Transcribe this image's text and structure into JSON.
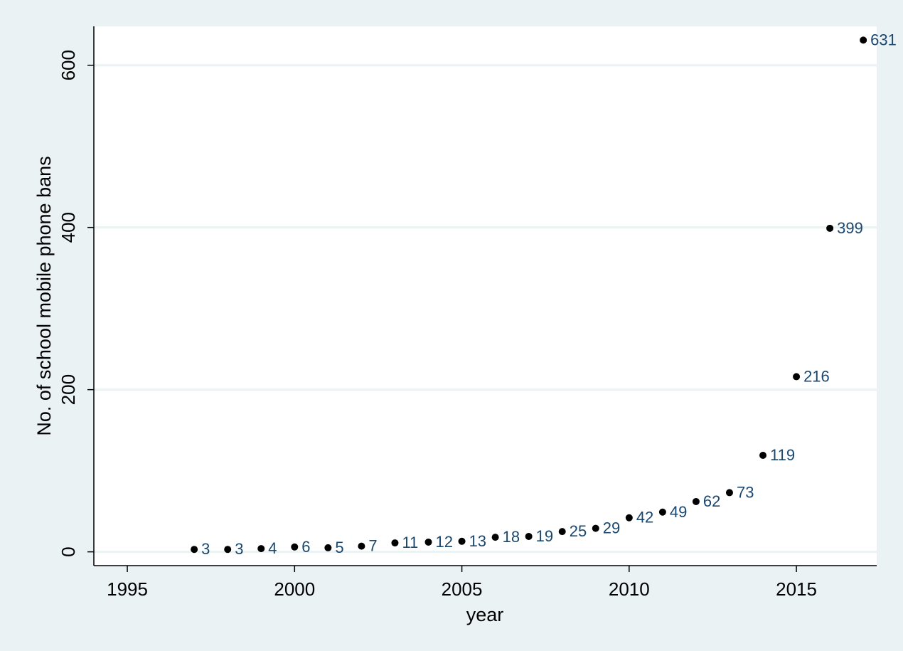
{
  "chart_data": {
    "type": "scatter",
    "title": "",
    "xlabel": "year",
    "ylabel": "No. of school mobile phone bans",
    "xlim": [
      1994,
      2017.4
    ],
    "ylim": [
      -17,
      648
    ],
    "x_ticks": [
      1995,
      2000,
      2005,
      2010,
      2015
    ],
    "y_ticks": [
      0,
      200,
      400,
      600
    ],
    "grid": "horizontal",
    "legend": "none",
    "marker_labels": true,
    "colors": {
      "background": "#eaf2f3",
      "plot_background": "#ffffff",
      "gridline": "#eaf2f3",
      "marker": "#000000",
      "label": "#1a476f"
    },
    "series": [
      {
        "x": [
          1997,
          1998,
          1999,
          2000,
          2001,
          2002,
          2003,
          2004,
          2005,
          2006,
          2007,
          2008,
          2009,
          2010,
          2011,
          2012,
          2013,
          2014,
          2015,
          2016,
          2017
        ],
        "values": [
          3,
          3,
          4,
          6,
          5,
          7,
          11,
          12,
          13,
          18,
          19,
          25,
          29,
          42,
          49,
          62,
          73,
          119,
          216,
          399,
          631
        ]
      }
    ]
  }
}
